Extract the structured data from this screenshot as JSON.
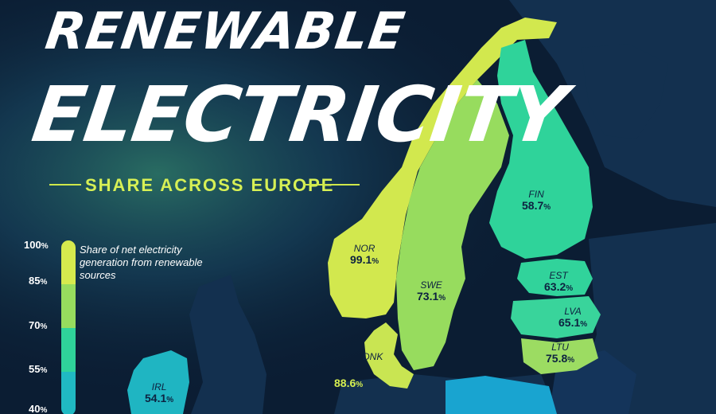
{
  "title": {
    "line1": "RENEWABLE",
    "line2": "ELECTRICITY"
  },
  "subtitle": "SHARE ACROSS EUROPE",
  "legend": {
    "description": "Share of net electricity generation from renewable sources",
    "ticks": [
      {
        "value": "100",
        "unit": "%"
      },
      {
        "value": "85",
        "unit": "%"
      },
      {
        "value": "70",
        "unit": "%"
      },
      {
        "value": "55",
        "unit": "%"
      },
      {
        "value": "40",
        "unit": "%"
      }
    ],
    "colors": [
      "#d6ea4e",
      "#97dc5e",
      "#2fd39a",
      "#20b9c3"
    ]
  },
  "countries": [
    {
      "code": "NOR",
      "value": "99.1",
      "unit": "%",
      "share": 99.1
    },
    {
      "code": "SWE",
      "value": "73.1",
      "unit": "%",
      "share": 73.1
    },
    {
      "code": "FIN",
      "value": "58.7",
      "unit": "%",
      "share": 58.7
    },
    {
      "code": "EST",
      "value": "63.2",
      "unit": "%",
      "share": 63.2
    },
    {
      "code": "LVA",
      "value": "65.1",
      "unit": "%",
      "share": 65.1
    },
    {
      "code": "LTU",
      "value": "75.8",
      "unit": "%",
      "share": 75.8
    },
    {
      "code": "DNK",
      "value": "88.6",
      "unit": "%",
      "share": 88.6
    },
    {
      "code": "IRL",
      "value": "54.1",
      "unit": "%",
      "share": 54.1
    }
  ],
  "colors": {
    "background": "#0b1d33",
    "land_no_data": "#13304f",
    "sea": "#0b1d33",
    "title": "#ffffff",
    "accent": "#d6ef50",
    "label_dark": "#0d2240"
  }
}
